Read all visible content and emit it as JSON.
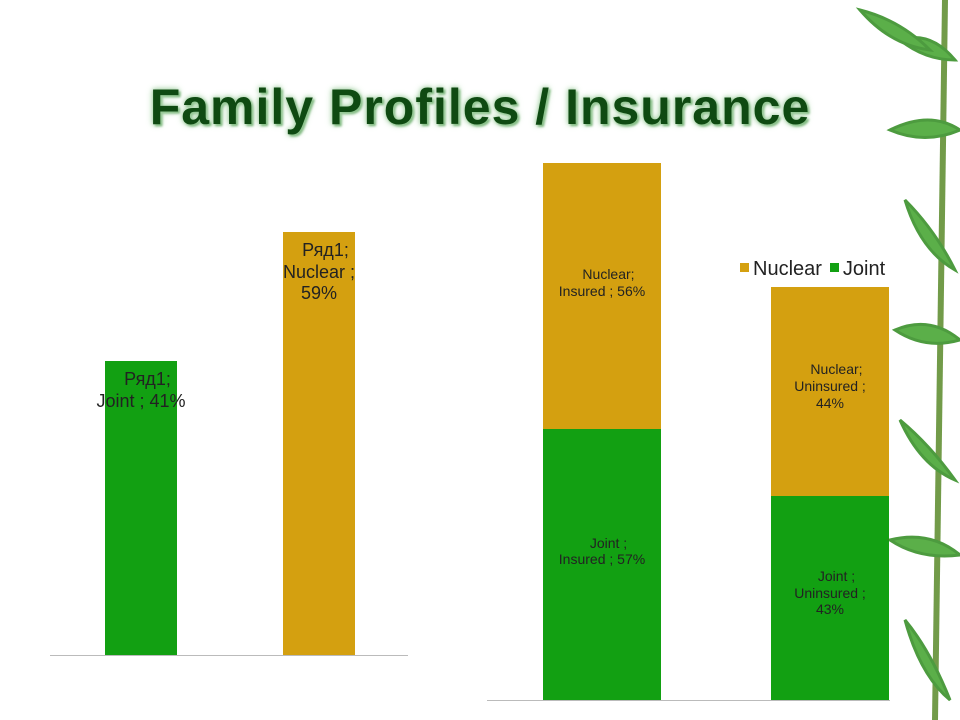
{
  "title": "Family Profiles / Insurance",
  "chart_data": [
    {
      "type": "bar",
      "categories": [
        null,
        null
      ],
      "values": [
        41,
        59
      ],
      "value_labels": [
        "Ряд1; Joint ; 41%",
        "Ряд1; Nuclear ; 59%"
      ],
      "colors": [
        "#12a012",
        "#d4a010"
      ],
      "ylim": [
        0,
        60
      ]
    },
    {
      "type": "stacked_bar",
      "categories": [
        null,
        null
      ],
      "series": [
        {
          "name": "Joint",
          "color": "#12a012",
          "values": [
            57,
            43
          ],
          "value_labels": [
            "Joint ; Insured ; 57%",
            "Joint ; Uninsured ; 43%"
          ]
        },
        {
          "name": "Nuclear",
          "color": "#d4a010",
          "values": [
            56,
            44
          ],
          "value_labels": [
            "Nuclear; Insured ; 56%",
            "Nuclear; Uninsured ; 44%"
          ]
        }
      ],
      "ylim": [
        0,
        120
      ],
      "legend": "top-right"
    }
  ]
}
